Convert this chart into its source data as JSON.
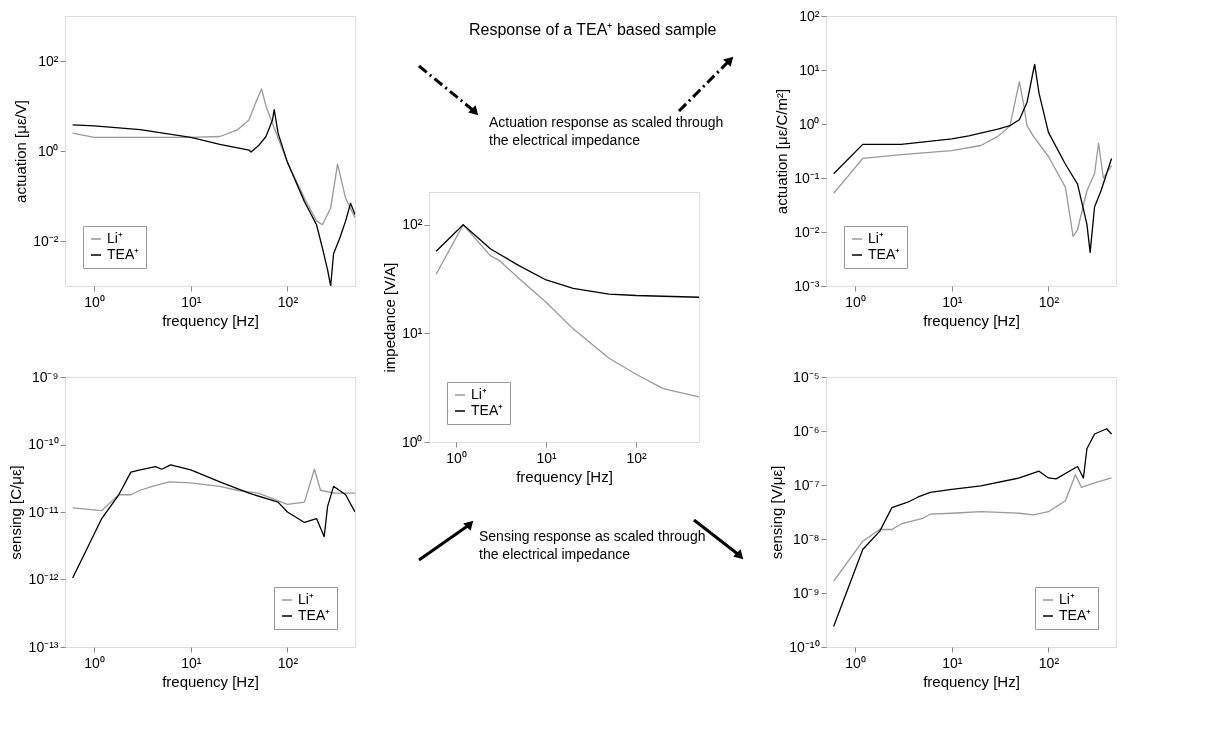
{
  "chart_data": [
    {
      "type": "line",
      "xlabel": "frequency [Hz]",
      "ylabel": "actuation [με/V]",
      "log": "xy",
      "legend": "bottom left",
      "xlim": [
        0.5,
        500
      ],
      "ylim": [
        0.001,
        1000
      ],
      "xticks": [
        {
          "value": 1,
          "label": "10⁰"
        },
        {
          "value": 10,
          "label": "10¹"
        },
        {
          "value": 100,
          "label": "10²"
        }
      ],
      "yticks": [
        {
          "value": 0.01,
          "label": "10⁻²"
        },
        {
          "value": 1,
          "label": "10⁰"
        },
        {
          "value": 100,
          "label": "10²"
        }
      ],
      "series": [
        {
          "name": "Li⁺",
          "color": "#999999",
          "x": [
            0.6,
            1,
            3,
            10,
            20,
            30,
            40,
            47,
            54,
            60,
            70,
            100,
            150,
            200,
            230,
            280,
            330,
            400,
            500
          ],
          "values": [
            2.5,
            2.0,
            2.0,
            2.0,
            2.1,
            2.9,
            4.9,
            12,
            24,
            10,
            4.1,
            0.56,
            0.089,
            0.028,
            0.023,
            0.054,
            0.51,
            0.089,
            0.033
          ]
        },
        {
          "name": "TEA⁺",
          "color": "#000000",
          "x": [
            0.6,
            1,
            3,
            10,
            20,
            40,
            42,
            50,
            60,
            70,
            73,
            80,
            100,
            150,
            200,
            230,
            260,
            280,
            300,
            350,
            400,
            450,
            500
          ],
          "values": [
            3.8,
            3.6,
            3.0,
            2.0,
            1.4,
            1.05,
            0.95,
            1.3,
            2.1,
            4.9,
            8.3,
            2.5,
            0.56,
            0.075,
            0.023,
            0.007,
            0.0023,
            0.001,
            0.0052,
            0.012,
            0.028,
            0.069,
            0.039
          ]
        }
      ]
    },
    {
      "type": "line",
      "xlabel": "frequency [Hz]",
      "ylabel": "sensing [C/με]",
      "log": "xy",
      "legend": "bottom right",
      "xlim": [
        0.5,
        500
      ],
      "ylim": [
        1e-13,
        1e-09
      ],
      "xticks": [
        {
          "value": 1,
          "label": "10⁰"
        },
        {
          "value": 10,
          "label": "10¹"
        },
        {
          "value": 100,
          "label": "10²"
        }
      ],
      "yticks": [
        {
          "value": 1e-13,
          "label": "10⁻¹³"
        },
        {
          "value": 1e-12,
          "label": "10⁻¹²"
        },
        {
          "value": 1e-11,
          "label": "10⁻¹¹"
        },
        {
          "value": 1e-10,
          "label": "10⁻¹⁰"
        },
        {
          "value": 1e-09,
          "label": "10⁻⁹"
        }
      ],
      "series": [
        {
          "name": "Li⁺",
          "color": "#999999",
          "x": [
            0.6,
            1.2,
            1.8,
            2.4,
            3,
            4,
            6,
            10,
            20,
            30,
            50,
            100,
            150,
            190,
            220,
            300,
            500
          ],
          "values": [
            1.15e-11,
            1.05e-11,
            1.8e-11,
            1.8e-11,
            2.1e-11,
            2.4e-11,
            2.8e-11,
            2.7e-11,
            2.4e-11,
            2.1e-11,
            1.9e-11,
            1.3e-11,
            1.4e-11,
            4.3e-11,
            2.1e-11,
            1.9e-11,
            1.9e-11
          ]
        },
        {
          "name": "TEA⁺",
          "color": "#000000",
          "x": [
            0.6,
            1.2,
            1.8,
            2.4,
            3,
            4.3,
            5,
            6.2,
            10,
            20,
            40,
            80,
            100,
            150,
            200,
            240,
            260,
            300,
            400,
            500
          ],
          "values": [
            1.05e-12,
            8e-12,
            1.8e-11,
            3.9e-11,
            4.2e-11,
            4.7e-11,
            4.3e-11,
            5e-11,
            4.2e-11,
            2.8e-11,
            1.9e-11,
            1.4e-11,
            1e-11,
            7e-12,
            8e-12,
            4.3e-12,
            1.2e-11,
            2.4e-11,
            1.8e-11,
            1e-11
          ]
        }
      ]
    },
    {
      "type": "line",
      "title": "Response of a TEA⁺ based sample",
      "annotations": [
        "Actuation response as scaled through\nthe electrical impedance",
        "Sensing response as scaled through\nthe electrical impedance"
      ],
      "xlabel": "frequency [Hz]",
      "ylabel": "impedance [V/A]",
      "log": "xy",
      "legend": "bottom left",
      "xlim": [
        0.5,
        500
      ],
      "ylim": [
        1,
        200
      ],
      "xticks": [
        {
          "value": 1,
          "label": "10⁰"
        },
        {
          "value": 10,
          "label": "10¹"
        },
        {
          "value": 100,
          "label": "10²"
        }
      ],
      "yticks": [
        {
          "value": 1,
          "label": "10⁰"
        },
        {
          "value": 10,
          "label": "10¹"
        },
        {
          "value": 100,
          "label": "10²"
        }
      ],
      "series": [
        {
          "name": "Li⁺",
          "color": "#999999",
          "x": [
            0.6,
            1.2,
            2.4,
            3,
            5,
            10,
            20,
            50,
            100,
            200,
            500
          ],
          "values": [
            35,
            100,
            52,
            47,
            32,
            19.3,
            11,
            5.9,
            4.2,
            3.1,
            2.6
          ]
        },
        {
          "name": "TEA⁺",
          "color": "#000000",
          "x": [
            0.6,
            1.2,
            2.4,
            5,
            10,
            20,
            50,
            100,
            500
          ],
          "values": [
            57,
            100,
            60,
            42,
            31,
            26,
            23,
            22.3,
            21.5
          ]
        }
      ]
    },
    {
      "type": "line",
      "xlabel": "frequency [Hz]",
      "ylabel": "actuation [με/C/m²]",
      "log": "xy",
      "legend": "bottom left",
      "xlim": [
        0.5,
        500
      ],
      "ylim": [
        0.001,
        100
      ],
      "xticks": [
        {
          "value": 1,
          "label": "10⁰"
        },
        {
          "value": 10,
          "label": "10¹"
        },
        {
          "value": 100,
          "label": "10²"
        }
      ],
      "yticks": [
        {
          "value": 0.001,
          "label": "10⁻³"
        },
        {
          "value": 0.01,
          "label": "10⁻²"
        },
        {
          "value": 0.1,
          "label": "10⁻¹"
        },
        {
          "value": 1,
          "label": "10⁰"
        },
        {
          "value": 10,
          "label": "10¹"
        },
        {
          "value": 100,
          "label": "10²"
        }
      ],
      "series": [
        {
          "name": "Li⁺",
          "color": "#999999",
          "x": [
            0.6,
            1.2,
            3,
            10,
            20,
            30,
            40,
            50,
            55,
            60,
            70,
            100,
            150,
            180,
            200,
            250,
            300,
            330,
            370,
            450
          ],
          "values": [
            0.052,
            0.23,
            0.27,
            0.32,
            0.4,
            0.59,
            0.92,
            6.1,
            2.5,
            0.93,
            0.59,
            0.25,
            0.067,
            0.0083,
            0.011,
            0.058,
            0.12,
            0.44,
            0.1,
            0.17
          ]
        },
        {
          "name": "TEA⁺",
          "color": "#000000",
          "x": [
            0.6,
            1.2,
            3,
            10,
            15,
            30,
            40,
            50,
            60,
            70,
            72,
            80,
            100,
            150,
            200,
            250,
            270,
            300,
            350,
            450
          ],
          "values": [
            0.12,
            0.42,
            0.42,
            0.53,
            0.6,
            0.8,
            0.93,
            1.2,
            2.5,
            10,
            12.7,
            3.7,
            0.7,
            0.18,
            0.077,
            0.014,
            0.0042,
            0.029,
            0.058,
            0.23
          ]
        }
      ]
    },
    {
      "type": "line",
      "xlabel": "frequency [Hz]",
      "ylabel": "sensing [V/με]",
      "log": "xy",
      "legend": "bottom right",
      "xlim": [
        0.5,
        500
      ],
      "ylim": [
        1e-10,
        1e-05
      ],
      "xticks": [
        {
          "value": 1,
          "label": "10⁰"
        },
        {
          "value": 10,
          "label": "10¹"
        },
        {
          "value": 100,
          "label": "10²"
        }
      ],
      "yticks": [
        {
          "value": 1e-10,
          "label": "10⁻¹⁰"
        },
        {
          "value": 1e-09,
          "label": "10⁻⁹"
        },
        {
          "value": 1e-08,
          "label": "10⁻⁸"
        },
        {
          "value": 1e-07,
          "label": "10⁻⁷"
        },
        {
          "value": 1e-06,
          "label": "10⁻⁶"
        },
        {
          "value": 1e-05,
          "label": "10⁻⁵"
        }
      ],
      "series": [
        {
          "name": "Li⁺",
          "color": "#999999",
          "x": [
            0.6,
            1.2,
            1.8,
            2.4,
            3,
            5,
            6,
            10,
            20,
            50,
            70,
            100,
            150,
            190,
            220,
            300,
            450
          ],
          "values": [
            1.66e-09,
            9.1e-09,
            1.5e-08,
            1.5e-08,
            1.9e-08,
            2.4e-08,
            2.9e-08,
            3e-08,
            3.2e-08,
            3e-08,
            2.8e-08,
            3.2e-08,
            5.1e-08,
            1.55e-07,
            9e-08,
            1.1e-07,
            1.35e-07
          ]
        },
        {
          "name": "TEA⁺",
          "color": "#000000",
          "x": [
            0.6,
            1.2,
            1.8,
            2.4,
            3.5,
            4.5,
            6,
            10,
            20,
            50,
            80,
            100,
            120,
            200,
            230,
            250,
            300,
            400,
            450
          ],
          "values": [
            2.4e-10,
            6.4e-09,
            1.4e-08,
            3.8e-08,
            4.8e-08,
            6e-08,
            7.3e-08,
            8.3e-08,
            9.6e-08,
            1.35e-07,
            1.8e-07,
            1.35e-07,
            1.3e-07,
            2.2e-07,
            1.35e-07,
            4.7e-07,
            8.8e-07,
            1.1e-06,
            8.8e-07
          ]
        }
      ]
    }
  ]
}
